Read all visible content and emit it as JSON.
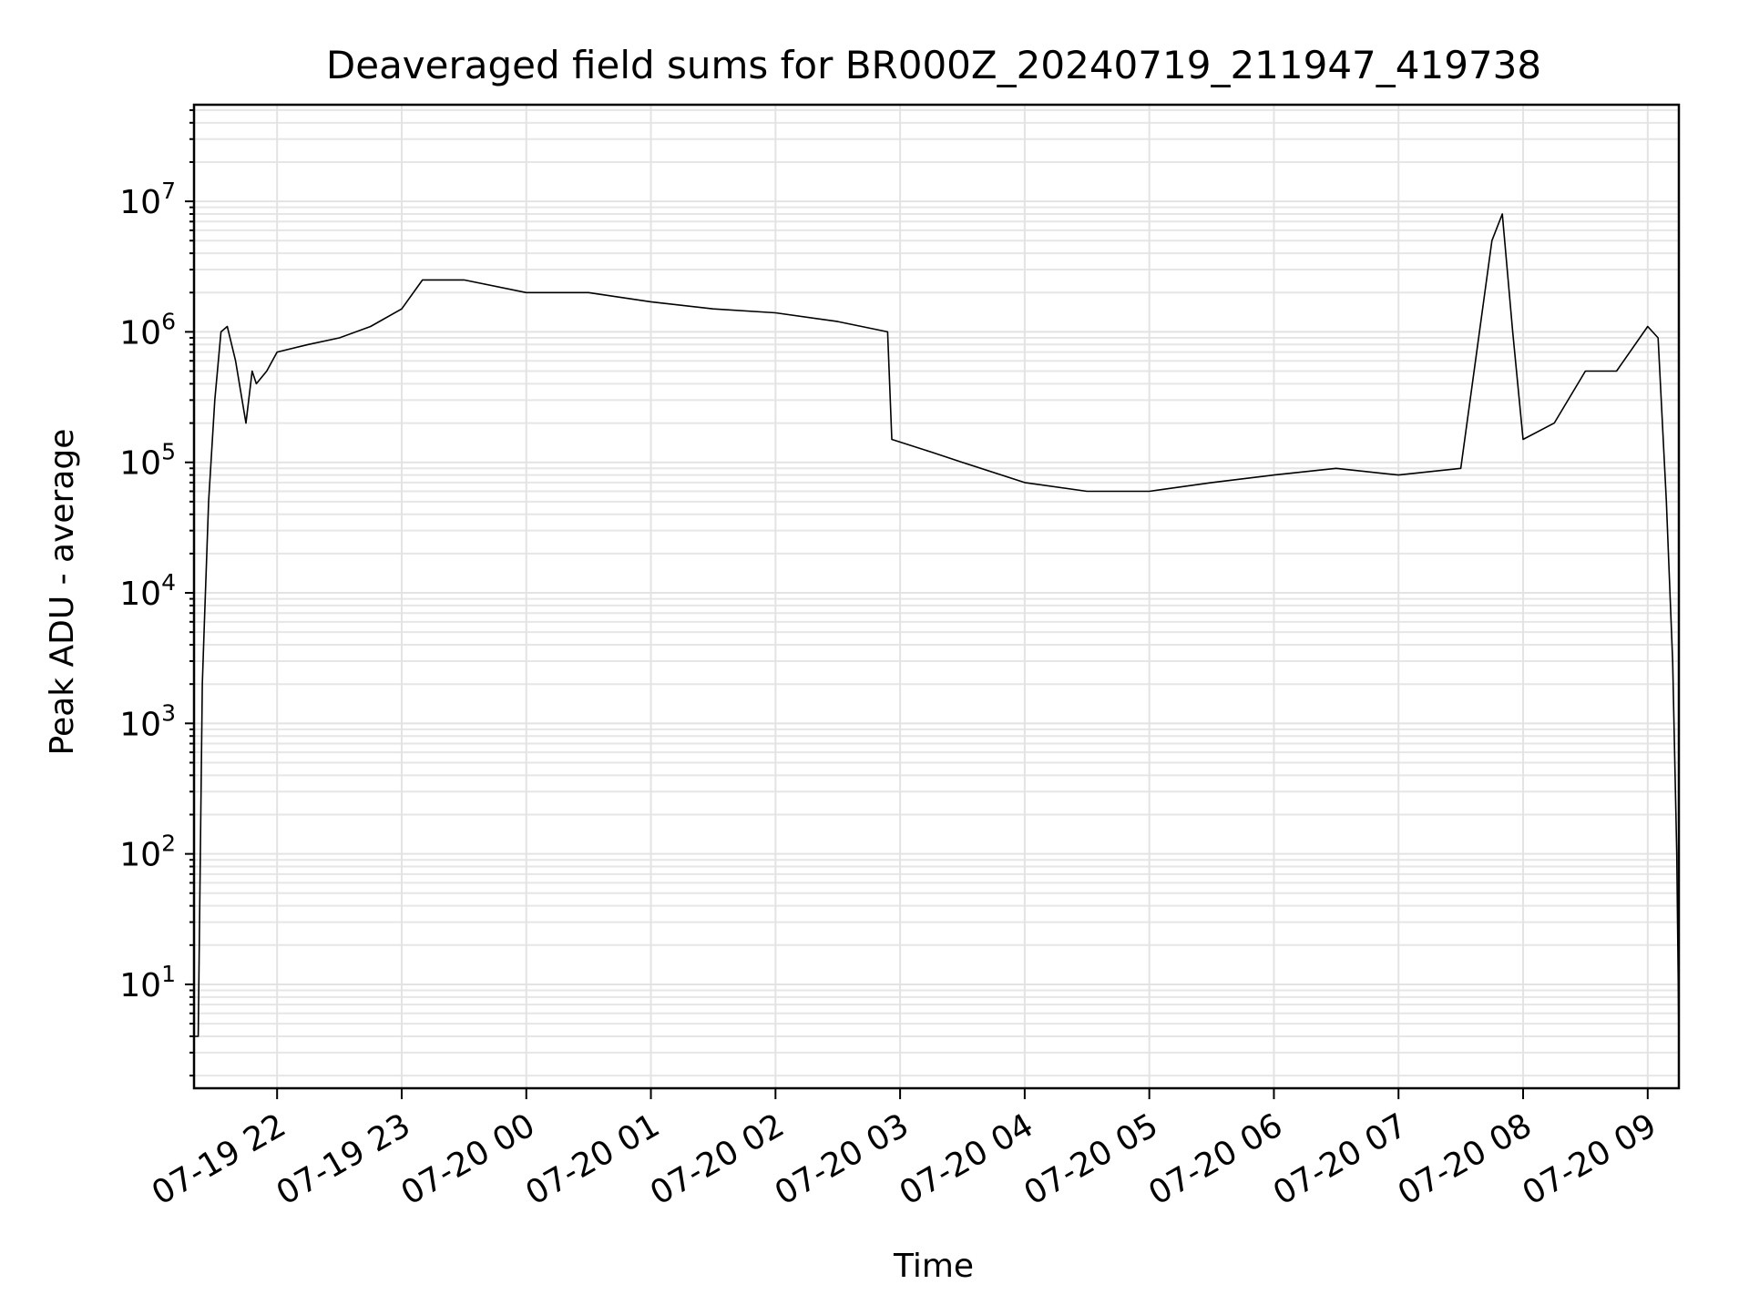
{
  "chart_data": {
    "type": "line",
    "title": "Deaveraged field sums for BR000Z_20240719_211947_419738",
    "xlabel": "Time",
    "ylabel": "Peak ADU - average",
    "xscale": "time",
    "yscale": "log",
    "xlim": [
      "2024-07-19 21:20",
      "2024-07-20 09:15"
    ],
    "ylim": [
      1.6,
      55000000
    ],
    "grid": true,
    "x_ticks": [
      "07-19 22",
      "07-19 23",
      "07-20 00",
      "07-20 01",
      "07-20 02",
      "07-20 03",
      "07-20 04",
      "07-20 05",
      "07-20 06",
      "07-20 07",
      "07-20 08",
      "07-20 09"
    ],
    "x_tick_values": [
      "2024-07-19 22:00",
      "2024-07-19 23:00",
      "2024-07-20 00:00",
      "2024-07-20 01:00",
      "2024-07-20 02:00",
      "2024-07-20 03:00",
      "2024-07-20 04:00",
      "2024-07-20 05:00",
      "2024-07-20 06:00",
      "2024-07-20 07:00",
      "2024-07-20 08:00",
      "2024-07-20 09:00"
    ],
    "y_ticks": [
      {
        "base": "10",
        "exp": "1",
        "value": 10
      },
      {
        "base": "10",
        "exp": "2",
        "value": 100
      },
      {
        "base": "10",
        "exp": "3",
        "value": 1000
      },
      {
        "base": "10",
        "exp": "4",
        "value": 10000
      },
      {
        "base": "10",
        "exp": "5",
        "value": 100000
      },
      {
        "base": "10",
        "exp": "6",
        "value": 1000000
      },
      {
        "base": "10",
        "exp": "7",
        "value": 10000000
      }
    ],
    "line_color": "#000000",
    "series": [
      {
        "x": [
          "2024-07-19 21:20",
          "2024-07-19 21:22",
          "2024-07-19 21:24",
          "2024-07-19 21:25",
          "2024-07-19 21:27",
          "2024-07-19 21:30",
          "2024-07-19 21:33",
          "2024-07-19 21:36",
          "2024-07-19 21:40",
          "2024-07-19 21:45",
          "2024-07-19 21:48",
          "2024-07-19 21:50",
          "2024-07-19 21:55",
          "2024-07-19 22:00",
          "2024-07-19 22:15",
          "2024-07-19 22:30",
          "2024-07-19 22:45",
          "2024-07-19 23:00",
          "2024-07-19 23:10",
          "2024-07-19 23:30",
          "2024-07-20 00:00",
          "2024-07-20 00:30",
          "2024-07-20 01:00",
          "2024-07-20 01:30",
          "2024-07-20 02:00",
          "2024-07-20 02:30",
          "2024-07-20 02:54",
          "2024-07-20 02:56",
          "2024-07-20 03:15",
          "2024-07-20 03:30",
          "2024-07-20 04:00",
          "2024-07-20 04:30",
          "2024-07-20 05:00",
          "2024-07-20 05:30",
          "2024-07-20 06:00",
          "2024-07-20 06:30",
          "2024-07-20 07:00",
          "2024-07-20 07:30",
          "2024-07-20 07:45",
          "2024-07-20 07:50",
          "2024-07-20 07:55",
          "2024-07-20 08:00",
          "2024-07-20 08:15",
          "2024-07-20 08:30",
          "2024-07-20 08:45",
          "2024-07-20 09:00",
          "2024-07-20 09:05",
          "2024-07-20 09:09",
          "2024-07-20 09:12",
          "2024-07-20 09:14",
          "2024-07-20 09:15"
        ],
        "y": [
          4,
          4,
          2000,
          6000,
          50000,
          300000,
          1000000,
          1100000,
          600000,
          200000,
          500000,
          400000,
          500000,
          700000,
          800000,
          900000,
          1100000,
          1500000,
          2500000,
          2500000,
          2000000,
          2000000,
          1700000,
          1500000,
          1400000,
          1200000,
          1000000,
          150000,
          120000,
          100000,
          70000,
          60000,
          60000,
          70000,
          80000,
          90000,
          80000,
          90000,
          5000000,
          8000000,
          1000000,
          150000,
          200000,
          500000,
          500000,
          1100000,
          900000,
          50000,
          3000,
          100,
          4
        ]
      }
    ]
  }
}
